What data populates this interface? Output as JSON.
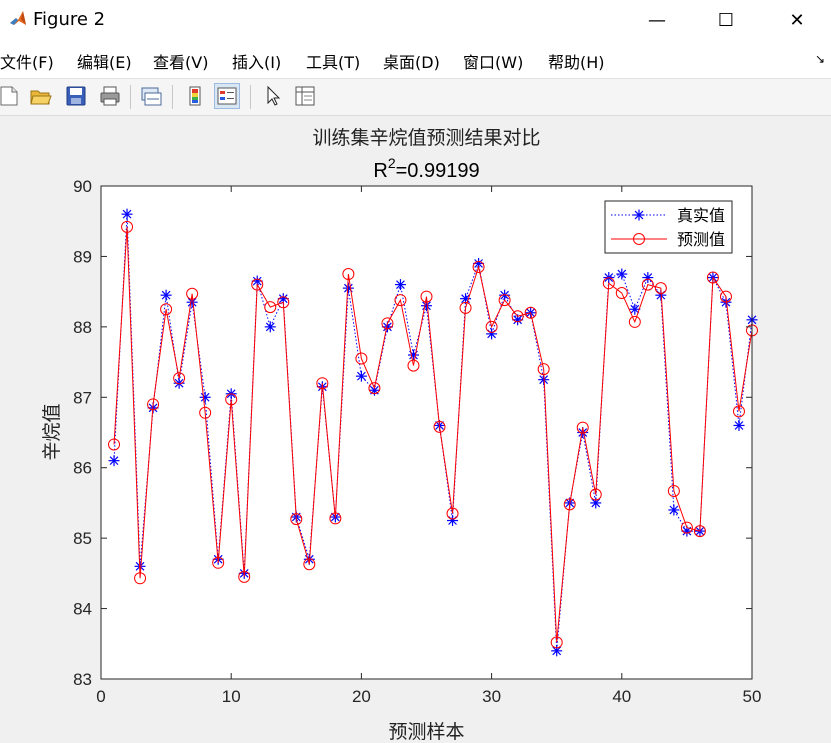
{
  "window": {
    "title": "Figure 2",
    "minimize_glyph": "—",
    "maximize_glyph": "☐",
    "close_glyph": "✕"
  },
  "menu": {
    "items": [
      "文件(F)",
      "编辑(E)",
      "查看(V)",
      "插入(I)",
      "工具(T)",
      "桌面(D)",
      "窗口(W)",
      "帮助(H)"
    ],
    "overflow_glyph": "↘"
  },
  "toolbar": {
    "icons": [
      "new-figure-icon",
      "open-file-icon",
      "save-icon",
      "print-icon",
      "link-plot-icon",
      "colorbar-icon",
      "legend-icon",
      "pointer-icon",
      "property-inspector-icon"
    ]
  },
  "colors": {
    "true_series": "#0000ff",
    "pred_series": "#ff0000",
    "axes_bg": "#ffffff",
    "figure_bg": "#f0f0f0"
  },
  "chart_data": {
    "type": "line",
    "title": "训练集辛烷值预测结果对比",
    "subtitle_base": "R",
    "subtitle_sup": "2",
    "subtitle_value": "=0.99199",
    "xlabel": "预测样本",
    "ylabel": "辛烷值",
    "xlim": [
      0,
      50
    ],
    "ylim": [
      83,
      90
    ],
    "xticks": [
      "0",
      "10",
      "20",
      "30",
      "40",
      "50"
    ],
    "yticks": [
      "83",
      "84",
      "85",
      "86",
      "87",
      "88",
      "89",
      "90"
    ],
    "grid": false,
    "legend_position": "top-right",
    "x": [
      1,
      2,
      3,
      4,
      5,
      6,
      7,
      8,
      9,
      10,
      11,
      12,
      13,
      14,
      15,
      16,
      17,
      18,
      19,
      20,
      21,
      22,
      23,
      24,
      25,
      26,
      27,
      28,
      29,
      30,
      31,
      32,
      33,
      34,
      35,
      36,
      37,
      38,
      39,
      40,
      41,
      42,
      43,
      44,
      45,
      46,
      47,
      48,
      49,
      50
    ],
    "series": [
      {
        "name": "真实值",
        "marker": "asterisk",
        "line": "dotted",
        "color": "#0000ff",
        "values": [
          86.1,
          89.6,
          84.6,
          86.85,
          88.45,
          87.2,
          88.35,
          87.0,
          84.7,
          87.05,
          84.5,
          88.65,
          88.0,
          88.4,
          85.3,
          84.7,
          87.15,
          85.3,
          88.55,
          87.3,
          87.1,
          88.0,
          88.6,
          87.6,
          88.3,
          86.6,
          85.25,
          88.4,
          88.9,
          87.9,
          88.45,
          88.1,
          88.2,
          87.25,
          83.4,
          85.5,
          86.5,
          85.5,
          88.7,
          88.75,
          88.25,
          88.7,
          88.45,
          85.4,
          85.1,
          85.1,
          88.7,
          88.35,
          86.6,
          88.1
        ]
      },
      {
        "name": "预测值",
        "marker": "circle",
        "line": "solid",
        "color": "#ff0000",
        "values": [
          86.33,
          89.42,
          84.43,
          86.9,
          88.25,
          87.27,
          88.47,
          86.78,
          84.65,
          86.97,
          84.45,
          88.6,
          88.28,
          88.35,
          85.27,
          84.63,
          87.2,
          85.28,
          88.75,
          87.55,
          87.13,
          88.05,
          88.38,
          87.45,
          88.43,
          86.58,
          85.35,
          88.27,
          88.85,
          88.0,
          88.38,
          88.15,
          88.2,
          87.4,
          83.52,
          85.48,
          86.57,
          85.62,
          88.62,
          88.48,
          88.07,
          88.6,
          88.55,
          85.67,
          85.15,
          85.1,
          88.7,
          88.43,
          86.8,
          87.95
        ]
      }
    ]
  }
}
